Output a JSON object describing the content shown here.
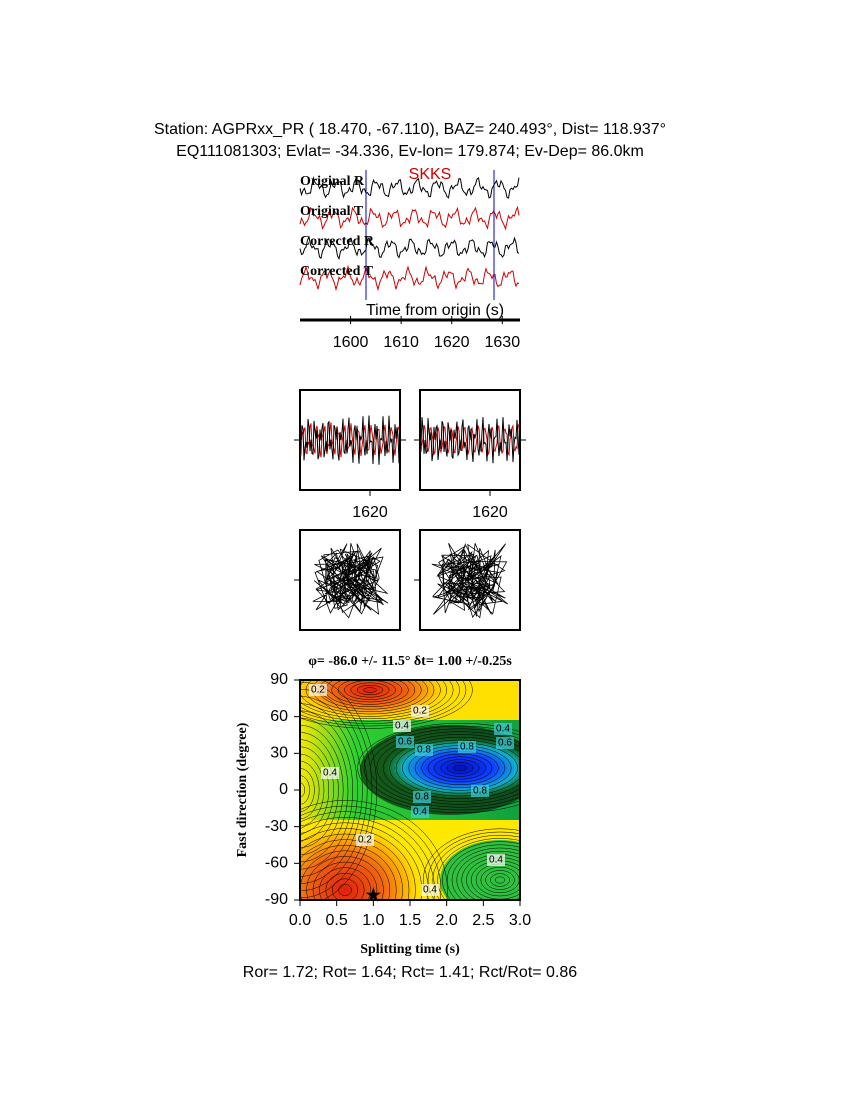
{
  "header": {
    "line1": "Station: AGPRxx_PR (  18.470,  -67.110), BAZ=  240.493°, Dist=  118.937°",
    "line2": "EQ111081303; Evlat= -34.336, Ev-lon= 179.874; Ev-Dep= 86.0km"
  },
  "traces": {
    "labels": [
      "Original R",
      "Original T",
      "Corrected R",
      "Corrected T"
    ],
    "phase": "SKKS",
    "xlabel": "Time from origin (s)",
    "xlim": [
      1590,
      1633.5
    ],
    "xticks": [
      1600,
      1610,
      1620,
      1630
    ]
  },
  "windows": {
    "xlim": [
      1606,
      1626
    ],
    "xticks": [
      1620
    ]
  },
  "chart_data": {
    "type": "contour",
    "title": "φ= -86.0 +/- 11.5° δt= 1.00 +/-0.25s",
    "xlabel": "Splitting time (s)",
    "ylabel": "Fast direction (degree)",
    "xlim": [
      0,
      3
    ],
    "ylim": [
      -90,
      90
    ],
    "xticks": [
      {
        "value": 0,
        "label": "0.0"
      },
      {
        "value": 0.5,
        "label": "0.5"
      },
      {
        "value": 1,
        "label": "1.0"
      },
      {
        "value": 1.5,
        "label": "1.5"
      },
      {
        "value": 2,
        "label": "2.0"
      },
      {
        "value": 2.5,
        "label": "2.5"
      },
      {
        "value": 3,
        "label": "3.0"
      }
    ],
    "yticks": [
      -90,
      -60,
      -30,
      0,
      30,
      60,
      90
    ],
    "best": {
      "x": 1.0,
      "y": -86
    },
    "contour_labels": [
      "0.2",
      "0.4",
      "0.6",
      "0.8",
      "0.8",
      "0.4",
      "0.6",
      "0.8",
      "0.4",
      "0.8",
      "0.4",
      "0.2",
      "0.4",
      "0.2",
      "0.4"
    ]
  },
  "footer": "Ror= 1.72; Rot= 1.64; Rct= 1.41; Rct/Rot= 0.86"
}
